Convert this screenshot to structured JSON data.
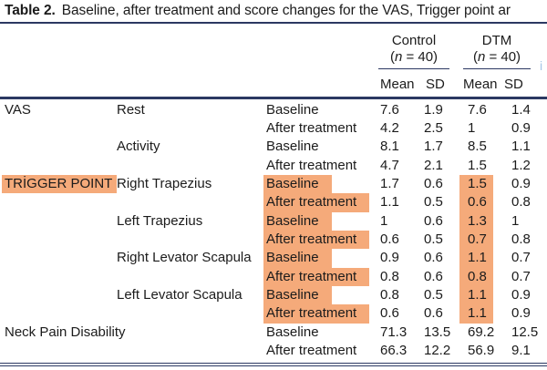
{
  "title": {
    "label": "Table 2.",
    "text": "Baseline, after treatment and score changes for the VAS, Trigger point ar"
  },
  "header": {
    "groups": [
      {
        "name": "Control",
        "n_pre": "(",
        "n_it": "n",
        "n_post": " = 40)"
      },
      {
        "name": "DTM",
        "n_pre": "(",
        "n_it": "n",
        "n_post": " = 40)"
      }
    ],
    "cols": [
      "Mean",
      "SD",
      "Mean",
      "SD"
    ]
  },
  "marginalia": {
    "partial_glyph": "i"
  },
  "colors": {
    "highlight": "#f5aa7a",
    "rule": "#2b3862"
  },
  "table": {
    "rows": [
      {
        "category": "VAS",
        "measure": "Rest",
        "timepoint": "Baseline",
        "values": [
          "7.6",
          "1.9",
          "7.6",
          "1.4"
        ]
      },
      {
        "timepoint": "After treatment",
        "values": [
          "4.2",
          "2.5",
          "1",
          "0.9"
        ]
      },
      {
        "measure": "Activity",
        "timepoint": "Baseline",
        "values": [
          "8.1",
          "1.7",
          "8.5",
          "1.1"
        ]
      },
      {
        "timepoint": "After treatment",
        "values": [
          "4.7",
          "2.1",
          "1.5",
          "1.2"
        ]
      },
      {
        "category": "TRİGGER POINT",
        "category_highlighted": true,
        "measure": "Right Trapezius",
        "timepoint": "Baseline",
        "timepoint_highlighted": true,
        "values": [
          "1.7",
          "0.6",
          "1.5",
          "0.9"
        ],
        "dtm_mean_highlighted": true
      },
      {
        "timepoint": "After treatment",
        "timepoint_highlighted": true,
        "values": [
          "1.1",
          "0.5",
          "0.6",
          "0.8"
        ],
        "dtm_mean_highlighted": true
      },
      {
        "measure": "Left Trapezius",
        "timepoint": "Baseline",
        "timepoint_highlighted": true,
        "values": [
          "1",
          "0.6",
          "1.3",
          "1"
        ],
        "dtm_mean_highlighted": true
      },
      {
        "timepoint": "After treatment",
        "timepoint_highlighted": true,
        "values": [
          "0.6",
          "0.5",
          "0.7",
          "0.8"
        ],
        "dtm_mean_highlighted": true
      },
      {
        "measure": "Right Levator Scapula",
        "timepoint": "Baseline",
        "timepoint_highlighted": true,
        "values": [
          "0.9",
          "0.6",
          "1.1",
          "0.7"
        ],
        "dtm_mean_highlighted": true
      },
      {
        "timepoint": "After treatment",
        "timepoint_highlighted": true,
        "values": [
          "0.8",
          "0.6",
          "0.8",
          "0.7"
        ],
        "dtm_mean_highlighted": true
      },
      {
        "measure": "Left Levator Scapula",
        "timepoint": "Baseline",
        "timepoint_highlighted": true,
        "values": [
          "0.8",
          "0.5",
          "1.1",
          "0.9"
        ],
        "dtm_mean_highlighted": true
      },
      {
        "timepoint": "After treatment",
        "timepoint_highlighted": true,
        "values": [
          "0.6",
          "0.6",
          "1.1",
          "0.9"
        ],
        "dtm_mean_highlighted": true
      },
      {
        "category": "Neck Pain Disability",
        "timepoint": "Baseline",
        "values": [
          "71.3",
          "13.5",
          "69.2",
          "12.5"
        ]
      },
      {
        "timepoint": "After treatment",
        "values": [
          "66.3",
          "12.2",
          "56.9",
          "9.1"
        ]
      }
    ]
  }
}
